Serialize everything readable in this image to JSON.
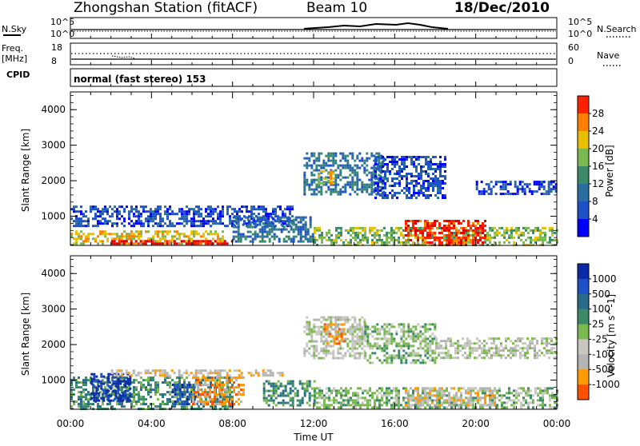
{
  "header": {
    "title": "Zhongshan Station (fitACF)",
    "beam": "Beam 10",
    "date": "18/Dec/2010"
  },
  "top_panel": {
    "left_label": "N.Sky",
    "right_label": "N.Search",
    "left_ticks": [
      "10^5",
      "10^0"
    ],
    "right_ticks": [
      "10^5",
      "10^0"
    ]
  },
  "freq_panel": {
    "left_label_1": "Freq.",
    "left_label_2": "[MHz]",
    "right_label": "Nave",
    "left_ticks": [
      "18",
      "8"
    ],
    "right_ticks": [
      "60",
      "0"
    ]
  },
  "cpid": {
    "label": "CPID",
    "value": "normal (fast stereo) 153"
  },
  "x_axis": {
    "label": "Time UT",
    "ticks": [
      "00:00",
      "04:00",
      "08:00",
      "12:00",
      "16:00",
      "20:00",
      "00:00"
    ]
  },
  "colors": {
    "power_scale": [
      "#0000ff",
      "#1e50c8",
      "#2a6ea0",
      "#3a8a6a",
      "#7ab850",
      "#e8c000",
      "#ff8000",
      "#ff2000",
      "#e00000"
    ],
    "velocity_scale": [
      "#0a2aa8",
      "#1e50c8",
      "#2a6a8a",
      "#3a8a6a",
      "#7ab850",
      "#c8c8c0",
      "#b4b4b4",
      "#ff9a00",
      "#ff5000",
      "#e00000"
    ]
  },
  "chart_data": [
    {
      "type": "heatmap",
      "title": "",
      "xlabel": "",
      "ylabel": "Slant Range [km]",
      "y_ticks": [
        "1000",
        "2000",
        "3000",
        "4000"
      ],
      "ylim": [
        180,
        4500
      ],
      "xlim": [
        0,
        24
      ],
      "colorbar_label": "Power [dB]",
      "colorbar_ticks": [
        "4",
        "8",
        "12",
        "16",
        "20",
        "24",
        "28"
      ],
      "blobs": [
        {
          "t0": 0.0,
          "t1": 11.0,
          "r0": 700,
          "r1": 1300,
          "level": 1
        },
        {
          "t0": 0.0,
          "t1": 7.5,
          "r0": 200,
          "r1": 600,
          "level": 5
        },
        {
          "t0": 2.0,
          "t1": 8.0,
          "r0": 200,
          "r1": 330,
          "level": 8
        },
        {
          "t0": 11.5,
          "t1": 15.5,
          "r0": 1600,
          "r1": 2800,
          "level": 2
        },
        {
          "t0": 12.2,
          "t1": 13.0,
          "r0": 1900,
          "r1": 2300,
          "level": 5
        },
        {
          "t0": 15.0,
          "t1": 18.5,
          "r0": 1500,
          "r1": 2700,
          "level": 1
        },
        {
          "t0": 12.0,
          "t1": 24.0,
          "r0": 200,
          "r1": 700,
          "level": 4
        },
        {
          "t0": 16.5,
          "t1": 20.5,
          "r0": 200,
          "r1": 900,
          "level": 7
        },
        {
          "t0": 20.0,
          "t1": 24.0,
          "r0": 1600,
          "r1": 2000,
          "level": 1
        },
        {
          "t0": 8.0,
          "t1": 12.0,
          "r0": 300,
          "r1": 1000,
          "level": 2
        }
      ]
    },
    {
      "type": "heatmap",
      "title": "",
      "xlabel": "Time UT",
      "ylabel": "Slant Range [km]",
      "y_ticks": [
        "1000",
        "2000",
        "3000",
        "4000"
      ],
      "ylim": [
        180,
        4500
      ],
      "xlim": [
        0,
        24
      ],
      "colorbar_label": "Velocity [m s^-1]",
      "colorbar_ticks": [
        "1000",
        "500",
        "100",
        "25",
        "-25",
        "-100",
        "-500",
        "-1000"
      ],
      "blobs": [
        {
          "t0": 0.0,
          "t1": 8.0,
          "r0": 200,
          "r1": 1100,
          "level": 3
        },
        {
          "t0": 1.0,
          "t1": 3.0,
          "r0": 400,
          "r1": 1200,
          "level": 0
        },
        {
          "t0": 5.0,
          "t1": 6.2,
          "r0": 300,
          "r1": 900,
          "level": 1
        },
        {
          "t0": 6.0,
          "t1": 8.5,
          "r0": 300,
          "r1": 1100,
          "level": 7
        },
        {
          "t0": 2.0,
          "t1": 10.5,
          "r0": 1150,
          "r1": 1300,
          "level": 6
        },
        {
          "t0": 11.5,
          "t1": 14.5,
          "r0": 1600,
          "r1": 2800,
          "level": 5
        },
        {
          "t0": 12.5,
          "t1": 13.5,
          "r0": 2000,
          "r1": 2600,
          "level": 7
        },
        {
          "t0": 14.5,
          "t1": 18.0,
          "r0": 1500,
          "r1": 2600,
          "level": 4
        },
        {
          "t0": 18.0,
          "t1": 24.0,
          "r0": 1600,
          "r1": 2200,
          "level": 5
        },
        {
          "t0": 12.0,
          "t1": 24.0,
          "r0": 200,
          "r1": 800,
          "level": 4
        },
        {
          "t0": 16.5,
          "t1": 21.0,
          "r0": 300,
          "r1": 800,
          "level": 6
        },
        {
          "t0": 9.5,
          "t1": 12.0,
          "r0": 300,
          "r1": 1000,
          "level": 3
        }
      ]
    }
  ]
}
